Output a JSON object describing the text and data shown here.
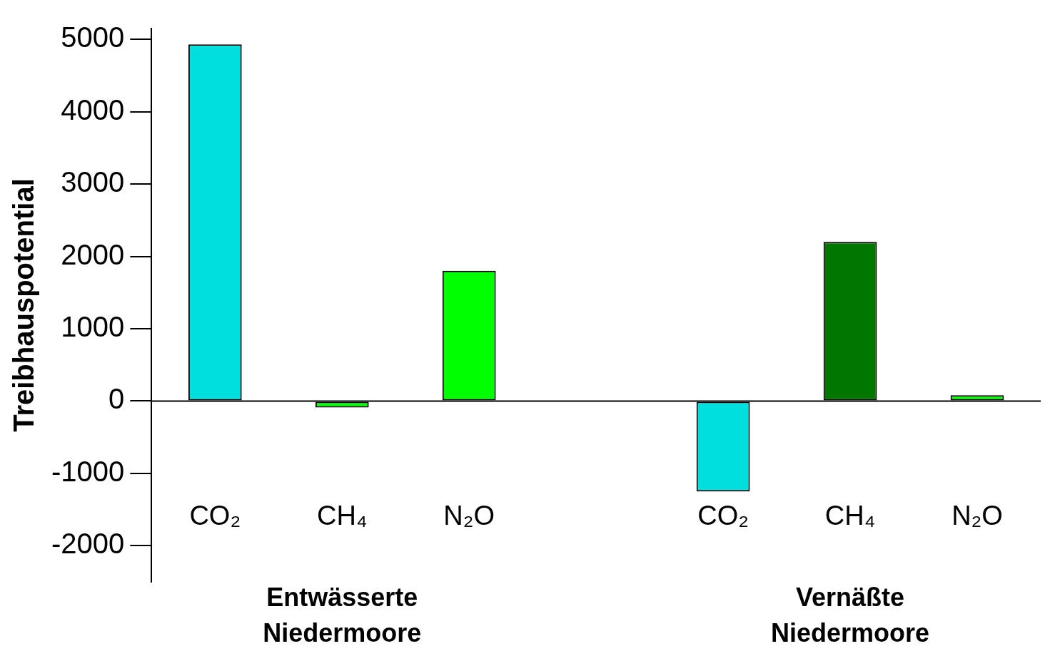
{
  "chart_data": {
    "type": "bar",
    "ylabel": "Treibhauspotential",
    "categories": [
      "CO₂",
      "CH₄",
      "N₂O",
      null,
      "CO₂",
      "CH₄",
      "N₂O"
    ],
    "values": [
      4930,
      -90,
      1800,
      null,
      -1250,
      2200,
      80
    ],
    "colors": [
      "#00dede",
      "#00ff00",
      "#00ff00",
      null,
      "#00dede",
      "#007800",
      "#00ff00"
    ],
    "ylim": [
      -2500,
      5150
    ],
    "yticks": [
      -2000,
      -1000,
      0,
      1000,
      2000,
      3000,
      4000,
      5000
    ],
    "annotations": [
      "Entwässerte Niedermoore",
      "Vernäßte Niedermoore"
    ]
  }
}
